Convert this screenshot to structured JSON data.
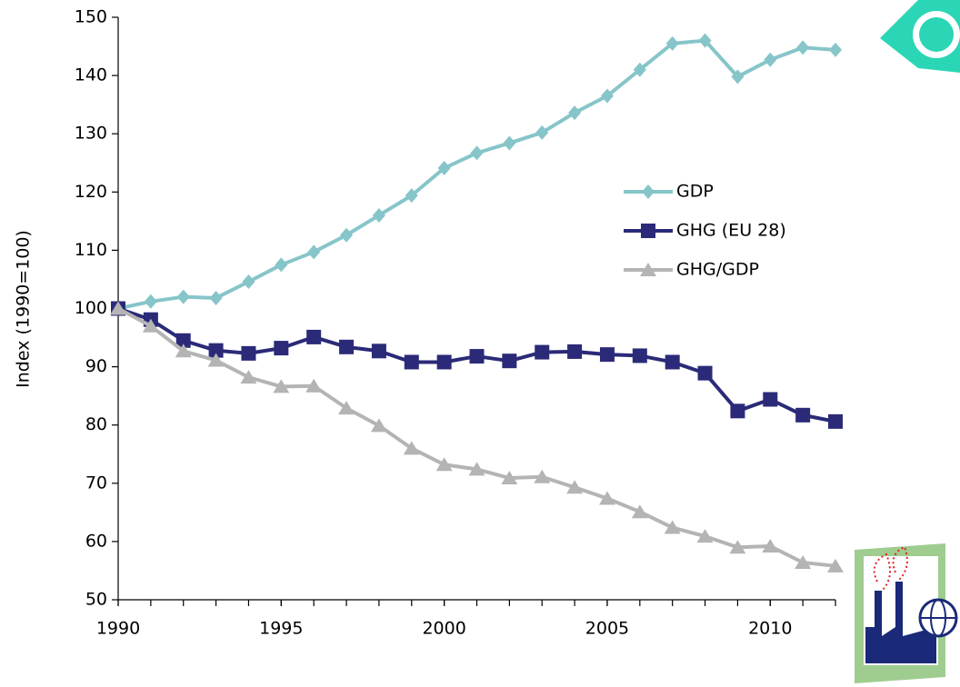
{
  "chart_data": {
    "type": "line",
    "y_label": "Index (1990=100)",
    "x": [
      1990,
      1991,
      1992,
      1993,
      1994,
      1995,
      1996,
      1997,
      1998,
      1999,
      2000,
      2001,
      2002,
      2003,
      2004,
      2005,
      2006,
      2007,
      2008,
      2009,
      2010,
      2011,
      2012
    ],
    "series": [
      {
        "name": "GDP",
        "color": "#86c5c9",
        "marker": "diamond",
        "values": [
          100,
          101.2,
          102,
          101.8,
          104.6,
          107.5,
          109.7,
          112.6,
          116,
          119.4,
          124.1,
          126.7,
          128.4,
          130.2,
          133.6,
          136.5,
          141,
          145.5,
          146,
          139.8,
          142.7,
          144.8,
          144.4
        ]
      },
      {
        "name": "GHG (EU 28)",
        "color": "#2b2a78",
        "marker": "square",
        "values": [
          100,
          98.1,
          94.5,
          92.8,
          92.3,
          93.2,
          95.1,
          93.4,
          92.7,
          90.8,
          90.8,
          91.8,
          91,
          92.5,
          92.6,
          92.1,
          91.9,
          90.8,
          88.9,
          82.4,
          84.4,
          81.7,
          80.6
        ]
      },
      {
        "name": "GHG/GDP",
        "color": "#b4b4b4",
        "marker": "triangle",
        "values": [
          100,
          97,
          92.7,
          91.1,
          88.2,
          86.6,
          86.7,
          82.9,
          79.9,
          76,
          73.2,
          72.4,
          70.9,
          71.1,
          69.3,
          67.4,
          65.1,
          62.4,
          60.9,
          59,
          59.2,
          56.4,
          55.8
        ]
      }
    ],
    "xlim": [
      1990,
      2012
    ],
    "xticks": [
      1990,
      1995,
      2000,
      2005,
      2010
    ],
    "ylim": [
      50,
      150
    ],
    "yticks": [
      50,
      60,
      70,
      80,
      90,
      100,
      110,
      120,
      130,
      140,
      150
    ],
    "grid": false,
    "legend": "right"
  }
}
